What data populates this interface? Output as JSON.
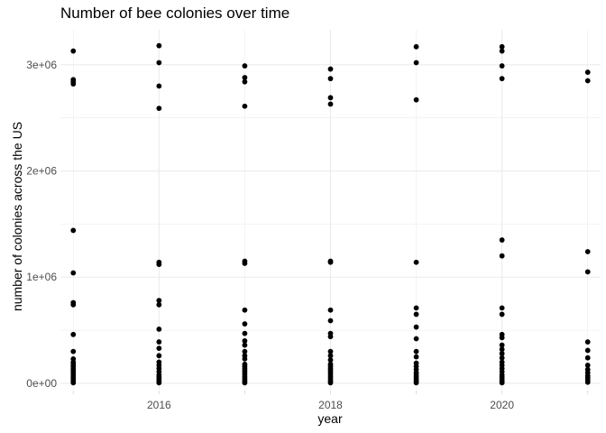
{
  "chart_data": {
    "type": "scatter",
    "title": "Number of bee colonies over time",
    "xlabel": "year",
    "ylabel": "number of colonies across the US",
    "xlim": [
      2014.85,
      2021.15
    ],
    "ylim": [
      -60000,
      3330000
    ],
    "x_ticks": [
      2016,
      2018,
      2020
    ],
    "x_tick_labels": [
      "2016",
      "2018",
      "2020"
    ],
    "y_ticks": [
      0,
      1000000,
      2000000,
      3000000
    ],
    "y_tick_labels": [
      "0e+00",
      "1e+06",
      "2e+06",
      "3e+06"
    ],
    "grid": true,
    "legend": "none",
    "point_color": "#000000",
    "grid_color": "#ebebeb",
    "series": [
      {
        "points": [
          [
            2015,
            3130000
          ],
          [
            2015,
            2860000
          ],
          [
            2015,
            2840000
          ],
          [
            2015,
            2820000
          ],
          [
            2015,
            1440000
          ],
          [
            2015,
            1040000
          ],
          [
            2015,
            760000
          ],
          [
            2015,
            740000
          ],
          [
            2015,
            460000
          ],
          [
            2015,
            300000
          ],
          [
            2015,
            230000
          ],
          [
            2015,
            200000
          ],
          [
            2015,
            180000
          ],
          [
            2015,
            160000
          ],
          [
            2015,
            140000
          ],
          [
            2015,
            120000
          ],
          [
            2015,
            100000
          ],
          [
            2015,
            80000
          ],
          [
            2015,
            60000
          ],
          [
            2015,
            40000
          ],
          [
            2015,
            20000
          ],
          [
            2015,
            5000
          ],
          [
            2016,
            3180000
          ],
          [
            2016,
            3020000
          ],
          [
            2016,
            2800000
          ],
          [
            2016,
            2590000
          ],
          [
            2016,
            1140000
          ],
          [
            2016,
            1120000
          ],
          [
            2016,
            780000
          ],
          [
            2016,
            740000
          ],
          [
            2016,
            510000
          ],
          [
            2016,
            390000
          ],
          [
            2016,
            330000
          ],
          [
            2016,
            260000
          ],
          [
            2016,
            200000
          ],
          [
            2016,
            170000
          ],
          [
            2016,
            140000
          ],
          [
            2016,
            110000
          ],
          [
            2016,
            80000
          ],
          [
            2016,
            60000
          ],
          [
            2016,
            40000
          ],
          [
            2016,
            20000
          ],
          [
            2016,
            5000
          ],
          [
            2017,
            2990000
          ],
          [
            2017,
            2880000
          ],
          [
            2017,
            2840000
          ],
          [
            2017,
            2610000
          ],
          [
            2017,
            1150000
          ],
          [
            2017,
            1130000
          ],
          [
            2017,
            690000
          ],
          [
            2017,
            560000
          ],
          [
            2017,
            470000
          ],
          [
            2017,
            400000
          ],
          [
            2017,
            360000
          ],
          [
            2017,
            300000
          ],
          [
            2017,
            260000
          ],
          [
            2017,
            230000
          ],
          [
            2017,
            180000
          ],
          [
            2017,
            160000
          ],
          [
            2017,
            140000
          ],
          [
            2017,
            120000
          ],
          [
            2017,
            100000
          ],
          [
            2017,
            80000
          ],
          [
            2017,
            60000
          ],
          [
            2017,
            40000
          ],
          [
            2017,
            20000
          ],
          [
            2017,
            5000
          ],
          [
            2018,
            2960000
          ],
          [
            2018,
            2870000
          ],
          [
            2018,
            2690000
          ],
          [
            2018,
            2630000
          ],
          [
            2018,
            1150000
          ],
          [
            2018,
            1140000
          ],
          [
            2018,
            690000
          ],
          [
            2018,
            590000
          ],
          [
            2018,
            470000
          ],
          [
            2018,
            440000
          ],
          [
            2018,
            300000
          ],
          [
            2018,
            260000
          ],
          [
            2018,
            220000
          ],
          [
            2018,
            180000
          ],
          [
            2018,
            160000
          ],
          [
            2018,
            140000
          ],
          [
            2018,
            120000
          ],
          [
            2018,
            100000
          ],
          [
            2018,
            80000
          ],
          [
            2018,
            60000
          ],
          [
            2018,
            40000
          ],
          [
            2018,
            20000
          ],
          [
            2018,
            5000
          ],
          [
            2019,
            3170000
          ],
          [
            2019,
            3020000
          ],
          [
            2019,
            2670000
          ],
          [
            2019,
            1140000
          ],
          [
            2019,
            710000
          ],
          [
            2019,
            650000
          ],
          [
            2019,
            530000
          ],
          [
            2019,
            420000
          ],
          [
            2019,
            300000
          ],
          [
            2019,
            250000
          ],
          [
            2019,
            190000
          ],
          [
            2019,
            160000
          ],
          [
            2019,
            130000
          ],
          [
            2019,
            100000
          ],
          [
            2019,
            80000
          ],
          [
            2019,
            60000
          ],
          [
            2019,
            40000
          ],
          [
            2019,
            20000
          ],
          [
            2019,
            5000
          ],
          [
            2020,
            3170000
          ],
          [
            2020,
            3130000
          ],
          [
            2020,
            2990000
          ],
          [
            2020,
            2870000
          ],
          [
            2020,
            1350000
          ],
          [
            2020,
            1200000
          ],
          [
            2020,
            710000
          ],
          [
            2020,
            650000
          ],
          [
            2020,
            460000
          ],
          [
            2020,
            430000
          ],
          [
            2020,
            360000
          ],
          [
            2020,
            320000
          ],
          [
            2020,
            280000
          ],
          [
            2020,
            240000
          ],
          [
            2020,
            200000
          ],
          [
            2020,
            170000
          ],
          [
            2020,
            140000
          ],
          [
            2020,
            110000
          ],
          [
            2020,
            80000
          ],
          [
            2020,
            60000
          ],
          [
            2020,
            40000
          ],
          [
            2020,
            20000
          ],
          [
            2020,
            5000
          ],
          [
            2021,
            2930000
          ],
          [
            2021,
            2850000
          ],
          [
            2021,
            1240000
          ],
          [
            2021,
            1050000
          ],
          [
            2021,
            390000
          ],
          [
            2021,
            310000
          ],
          [
            2021,
            240000
          ],
          [
            2021,
            170000
          ],
          [
            2021,
            130000
          ],
          [
            2021,
            100000
          ],
          [
            2021,
            70000
          ],
          [
            2021,
            50000
          ],
          [
            2021,
            30000
          ],
          [
            2021,
            10000
          ]
        ]
      }
    ]
  }
}
